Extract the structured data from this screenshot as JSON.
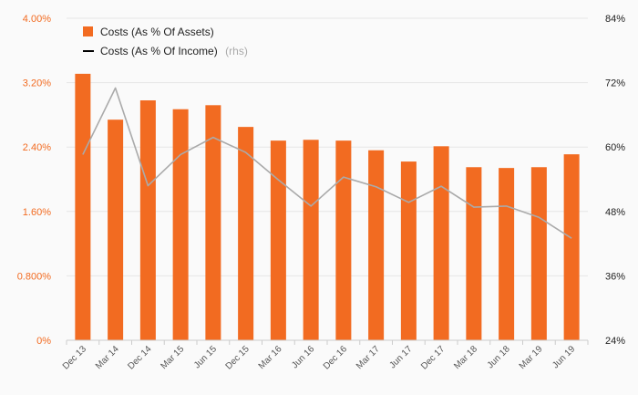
{
  "chart_data": {
    "type": "bar",
    "categories": [
      "Dec 13",
      "Mar 14",
      "Dec 14",
      "Mar 15",
      "Jun 15",
      "Dec 15",
      "Mar 16",
      "Jun 16",
      "Dec 16",
      "Mar 17",
      "Jun 17",
      "Dec 17",
      "Mar 18",
      "Jun 18",
      "Mar 19",
      "Jun 19"
    ],
    "series": [
      {
        "name": "Costs (As % Of Assets)",
        "type": "bar",
        "axis": "left",
        "color": "#f26b21",
        "values": [
          3.31,
          2.74,
          2.98,
          2.87,
          2.92,
          2.65,
          2.48,
          2.49,
          2.48,
          2.36,
          2.22,
          2.41,
          2.15,
          2.14,
          2.15,
          2.31
        ]
      },
      {
        "name": "Costs (As % Of Income)",
        "name_suffix": "(rhs)",
        "type": "line",
        "axis": "right",
        "color": "#aaaaaa",
        "legend_color": "#000000",
        "values": [
          58.6,
          71.0,
          52.8,
          58.6,
          61.8,
          59.0,
          53.9,
          49.0,
          54.4,
          52.6,
          49.7,
          52.7,
          48.8,
          49.0,
          46.9,
          43.0
        ]
      }
    ],
    "y_left": {
      "ylim": [
        0,
        4.0
      ],
      "ticks": [
        0,
        0.8,
        1.6,
        2.4,
        3.2,
        4.0
      ],
      "tick_labels": [
        "0%",
        "0.800%",
        "1.60%",
        "2.40%",
        "3.20%",
        "4.00%"
      ],
      "color": "#f26b21"
    },
    "y_right": {
      "ylim": [
        24,
        84
      ],
      "ticks": [
        24,
        36,
        48,
        60,
        72,
        84
      ],
      "tick_labels": [
        "24%",
        "36%",
        "48%",
        "60%",
        "72%",
        "84%"
      ],
      "color": "#222222"
    },
    "title": "",
    "xlabel": "",
    "ylabel": "",
    "grid": true,
    "legend_position": "top-left"
  }
}
